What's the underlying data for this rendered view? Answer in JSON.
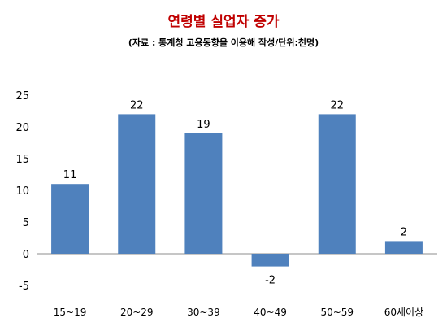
{
  "chart_data": {
    "type": "bar",
    "title": "연령별 실업자 증가",
    "subtitle": "(자료 : 통계청 고용동향을 이용해 작성/단위:천명)",
    "categories": [
      "15~19",
      "20~29",
      "30~39",
      "40~49",
      "50~59",
      "60세이상"
    ],
    "values": [
      11,
      22,
      19,
      -2,
      22,
      2
    ],
    "ylim": [
      -5,
      25
    ],
    "yticks": [
      25,
      20,
      15,
      10,
      5,
      0,
      -5
    ],
    "grid": false,
    "bar_color": "#4f81bd",
    "xlabel": "",
    "ylabel": ""
  }
}
